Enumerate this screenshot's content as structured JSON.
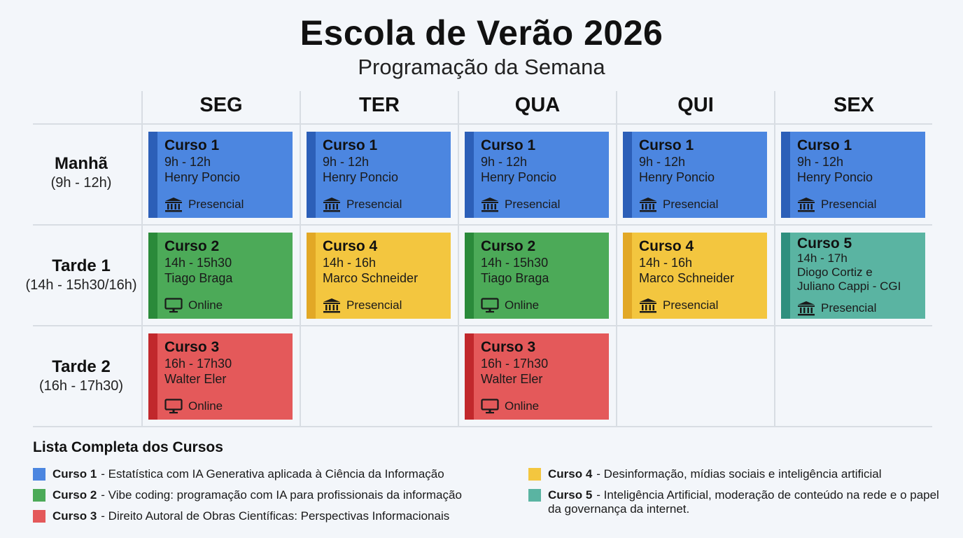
{
  "header": {
    "title": "Escola de Verão 2026",
    "subtitle": "Programação da Semana"
  },
  "days": [
    "SEG",
    "TER",
    "QUA",
    "QUI",
    "SEX"
  ],
  "periods": [
    {
      "name": "Manhã",
      "time": "(9h - 12h)"
    },
    {
      "name": "Tarde 1",
      "time": "(14h - 15h30/16h)"
    },
    {
      "name": "Tarde 2",
      "time": "(16h - 17h30)"
    }
  ],
  "colors": {
    "curso1": "#4c86e0",
    "curso2": "#4caa58",
    "curso3": "#e4595a",
    "curso4": "#f3c63f",
    "curso5": "#5ab4a2"
  },
  "icons": {
    "presencial": "building-icon",
    "online": "monitor-icon"
  },
  "schedule": {
    "manha": [
      {
        "name": "Curso 1",
        "time": "9h - 12h",
        "prof": "Henry Poncio",
        "mode": "Presencial"
      },
      {
        "name": "Curso 1",
        "time": "9h - 12h",
        "prof": "Henry Poncio",
        "mode": "Presencial"
      },
      {
        "name": "Curso 1",
        "time": "9h - 12h",
        "prof": "Henry Poncio",
        "mode": "Presencial"
      },
      {
        "name": "Curso 1",
        "time": "9h - 12h",
        "prof": "Henry Poncio",
        "mode": "Presencial"
      },
      {
        "name": "Curso 1",
        "time": "9h - 12h",
        "prof": "Henry Poncio",
        "mode": "Presencial"
      }
    ],
    "tarde1": [
      {
        "name": "Curso 2",
        "time": "14h - 15h30",
        "prof": "Tiago Braga",
        "mode": "Online"
      },
      {
        "name": "Curso 4",
        "time": "14h - 16h",
        "prof": "Marco Schneider",
        "mode": "Presencial"
      },
      {
        "name": "Curso 2",
        "time": "14h - 15h30",
        "prof": "Tiago Braga",
        "mode": "Online"
      },
      {
        "name": "Curso 4",
        "time": "14h - 16h",
        "prof": "Marco Schneider",
        "mode": "Presencial"
      },
      {
        "name": "Curso 5",
        "time": "14h - 17h",
        "prof_line1": "Diogo Cortiz e",
        "prof_line2": "Juliano Cappi - CGI",
        "mode": "Presencial"
      }
    ],
    "tarde2": [
      {
        "name": "Curso 3",
        "time": "16h - 17h30",
        "prof": "Walter Eler",
        "mode": "Online"
      },
      {
        "name": "Curso 3",
        "time": "16h - 17h30",
        "prof": "Walter Eler",
        "mode": "Online"
      }
    ]
  },
  "legend": {
    "title": "Lista Completa dos Cursos",
    "items": [
      {
        "label": "Curso 1",
        "text": "- Estatística com IA Generativa aplicada à Ciência da Informação"
      },
      {
        "label": "Curso 2",
        "text": "- Vibe coding: programação com IA para profissionais da informação"
      },
      {
        "label": "Curso 3",
        "text": "- Direito Autoral de Obras Científicas: Perspectivas Informacionais"
      },
      {
        "label": "Curso 4",
        "text": "- Desinformação, mídias sociais e inteligência artificial"
      },
      {
        "label": "Curso 5",
        "text": "- Inteligência Artificial, moderação de conteúdo na rede e o papel da governança da internet."
      }
    ]
  }
}
